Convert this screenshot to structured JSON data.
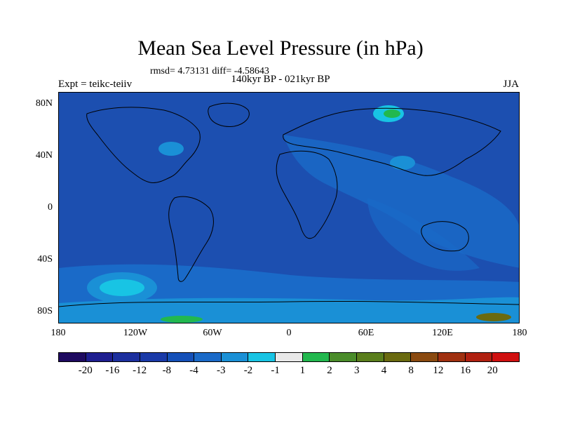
{
  "title": "Mean Sea Level Pressure (in hPa)",
  "stats": "rmsd= 4.73131 diff= -4.58643",
  "subtitle": "140kyr BP - 021kyr BP",
  "left_label": "Expt = teikc-teiiv",
  "right_label": "JJA",
  "lat_labels": [
    "80N",
    "40N",
    "0",
    "40S",
    "80S"
  ],
  "lon_labels": [
    "180",
    "120W",
    "60W",
    "0",
    "60E",
    "120E",
    "180"
  ],
  "colorbar": {
    "colors": [
      "#1e0a60",
      "#1e1e90",
      "#1c2f9e",
      "#1a3aa8",
      "#1450b8",
      "#1a6ac8",
      "#1a90d6",
      "#18c4e4",
      "#e8e8e8",
      "#22b84e",
      "#4a8c2a",
      "#5a7e1c",
      "#6a6a10",
      "#8a4a10",
      "#a03010",
      "#b02010",
      "#d01010"
    ],
    "labels": [
      "-20",
      "-16",
      "-12",
      "-8",
      "-4",
      "-3",
      "-2",
      "-1",
      "1",
      "2",
      "3",
      "4",
      "8",
      "12",
      "16",
      "20"
    ]
  },
  "map": {
    "ocean_color": "#1c4fb0",
    "land_fill": "none",
    "coast_color": "#000000"
  }
}
